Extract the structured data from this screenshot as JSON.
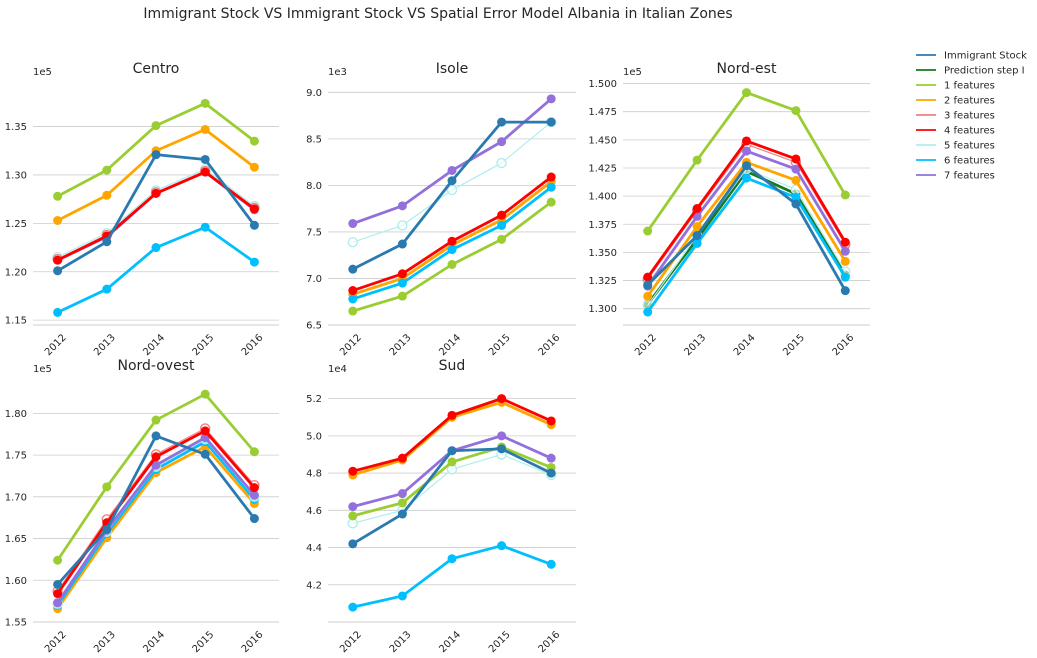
{
  "title": "Immigrant Stock VS Immigrant Stock VS Spatial Error Model Albania in Italian Zones",
  "legend": {
    "placement": "right",
    "entries": [
      {
        "label": "Immigrant Stock",
        "color": "#2a7ab0"
      },
      {
        "label": "Prediction step I",
        "color": "#1a7a1a"
      },
      {
        "label": "1 features",
        "color": "#9acd32"
      },
      {
        "label": "2 features",
        "color": "#ffa500"
      },
      {
        "label": "3 features",
        "color": "#f08080"
      },
      {
        "label": "4 features",
        "color": "#ff0000"
      },
      {
        "label": "5 features",
        "color": "#afeeee"
      },
      {
        "label": "6 features",
        "color": "#00bfff"
      },
      {
        "label": "7 features",
        "color": "#9370db"
      }
    ]
  },
  "chart_data": [
    {
      "type": "line",
      "title": "Centro",
      "offset_label": "1e5",
      "x": [
        "2012",
        "2013",
        "2014",
        "2015",
        "2016"
      ],
      "ylim": [
        1.145,
        1.395
      ],
      "yticks": [
        "1.15",
        "1.20",
        "1.25",
        "1.30",
        "1.35"
      ],
      "grid": "horizontal",
      "series": [
        {
          "name": "7 features",
          "values": [
            1.212,
            1.236,
            1.281,
            1.303,
            1.264
          ]
        },
        {
          "name": "5 features",
          "values": [
            1.215,
            1.24,
            1.284,
            1.306,
            1.268
          ]
        },
        {
          "name": "3 features",
          "values": [
            1.213,
            1.238,
            1.282,
            1.304,
            1.266
          ]
        },
        {
          "name": "4 features",
          "values": [
            1.212,
            1.237,
            1.281,
            1.303,
            1.265
          ]
        },
        {
          "name": "2 features",
          "values": [
            1.253,
            1.279,
            1.325,
            1.347,
            1.308
          ]
        },
        {
          "name": "1 features",
          "values": [
            1.278,
            1.305,
            1.351,
            1.374,
            1.335
          ]
        },
        {
          "name": "6 features",
          "values": [
            1.158,
            1.182,
            1.225,
            1.246,
            1.21
          ]
        },
        {
          "name": "Immigrant Stock",
          "values": [
            1.201,
            1.231,
            1.321,
            1.316,
            1.248
          ]
        }
      ]
    },
    {
      "type": "line",
      "title": "Isole",
      "offset_label": "1e3",
      "x": [
        "2012",
        "2013",
        "2014",
        "2015",
        "2016"
      ],
      "ylim": [
        6.5,
        9.1
      ],
      "yticks": [
        "6.5",
        "7.0",
        "7.5",
        "8.0",
        "8.5",
        "9.0"
      ],
      "grid": "horizontal",
      "series": [
        {
          "name": "5 features",
          "values": [
            7.39,
            7.57,
            7.95,
            8.24,
            8.68
          ]
        },
        {
          "name": "1 features",
          "values": [
            6.65,
            6.81,
            7.15,
            7.42,
            7.82
          ]
        },
        {
          "name": "2 features",
          "values": [
            6.83,
            7.0,
            7.36,
            7.63,
            8.04
          ]
        },
        {
          "name": "6 features",
          "values": [
            6.78,
            6.95,
            7.31,
            7.57,
            7.98
          ]
        },
        {
          "name": "4 features",
          "values": [
            6.87,
            7.05,
            7.4,
            7.68,
            8.09
          ]
        },
        {
          "name": "7 features",
          "values": [
            7.59,
            7.78,
            8.16,
            8.47,
            8.93
          ]
        },
        {
          "name": "Immigrant Stock",
          "values": [
            7.1,
            7.37,
            8.05,
            8.68,
            8.68
          ]
        }
      ]
    },
    {
      "type": "line",
      "title": "Nord-est",
      "offset_label": "1e5",
      "x": [
        "2012",
        "2013",
        "2014",
        "2015",
        "2016"
      ],
      "ylim": [
        1.2855,
        1.5005
      ],
      "yticks": [
        "1.300",
        "1.325",
        "1.350",
        "1.375",
        "1.400",
        "1.425",
        "1.450",
        "1.475",
        "1.500"
      ],
      "grid": "horizontal",
      "series": [
        {
          "name": "Prediction step I",
          "values": [
            1.304,
            1.362,
            1.422,
            1.402,
            1.33
          ]
        },
        {
          "name": "5 features",
          "values": [
            1.303,
            1.365,
            1.424,
            1.406,
            1.333
          ]
        },
        {
          "name": "6 features",
          "values": [
            1.297,
            1.358,
            1.416,
            1.399,
            1.328
          ]
        },
        {
          "name": "2 features",
          "values": [
            1.311,
            1.373,
            1.43,
            1.414,
            1.342
          ]
        },
        {
          "name": "1 features",
          "values": [
            1.369,
            1.432,
            1.492,
            1.476,
            1.401
          ]
        },
        {
          "name": "3 features",
          "values": [
            1.326,
            1.387,
            1.446,
            1.43,
            1.357
          ]
        },
        {
          "name": "7 features",
          "values": [
            1.32,
            1.382,
            1.44,
            1.424,
            1.351
          ]
        },
        {
          "name": "4 features",
          "values": [
            1.328,
            1.389,
            1.449,
            1.433,
            1.359
          ]
        },
        {
          "name": "Immigrant Stock",
          "values": [
            1.321,
            1.365,
            1.427,
            1.393,
            1.316
          ]
        }
      ]
    },
    {
      "type": "line",
      "title": "Nord-ovest",
      "offset_label": "1e5",
      "x": [
        "2012",
        "2013",
        "2014",
        "2015",
        "2016"
      ],
      "ylim": [
        1.55,
        1.84
      ],
      "yticks": [
        "1.55",
        "1.60",
        "1.65",
        "1.70",
        "1.75",
        "1.80"
      ],
      "grid": "horizontal",
      "series": [
        {
          "name": "2 features",
          "values": [
            1.566,
            1.651,
            1.729,
            1.76,
            1.692
          ]
        },
        {
          "name": "6 features",
          "values": [
            1.57,
            1.656,
            1.733,
            1.766,
            1.697
          ]
        },
        {
          "name": "5 features",
          "values": [
            1.572,
            1.658,
            1.736,
            1.769,
            1.7
          ]
        },
        {
          "name": "7 features",
          "values": [
            1.573,
            1.66,
            1.738,
            1.771,
            1.702
          ]
        },
        {
          "name": "1 features",
          "values": [
            1.624,
            1.712,
            1.792,
            1.823,
            1.754
          ]
        },
        {
          "name": "3 features",
          "values": [
            1.587,
            1.673,
            1.751,
            1.782,
            1.714
          ]
        },
        {
          "name": "4 features",
          "values": [
            1.584,
            1.669,
            1.748,
            1.779,
            1.711
          ]
        },
        {
          "name": "Immigrant Stock",
          "values": [
            1.595,
            1.661,
            1.773,
            1.751,
            1.674
          ]
        }
      ]
    },
    {
      "type": "line",
      "title": "Sud",
      "offset_label": "1e4",
      "x": [
        "2012",
        "2013",
        "2014",
        "2015",
        "2016"
      ],
      "ylim": [
        4.0,
        5.3
      ],
      "yticks": [
        "4.2",
        "4.4",
        "4.6",
        "4.8",
        "5.0",
        "5.2"
      ],
      "grid": "horizontal",
      "series": [
        {
          "name": "5 features",
          "values": [
            4.53,
            4.6,
            4.82,
            4.9,
            4.79
          ]
        },
        {
          "name": "1 features",
          "values": [
            4.57,
            4.64,
            4.86,
            4.94,
            4.83
          ]
        },
        {
          "name": "7 features",
          "values": [
            4.62,
            4.69,
            4.92,
            5.0,
            4.88
          ]
        },
        {
          "name": "2 features",
          "values": [
            4.79,
            4.87,
            5.1,
            5.18,
            5.06
          ]
        },
        {
          "name": "4 features",
          "values": [
            4.81,
            4.88,
            5.11,
            5.2,
            5.08
          ]
        },
        {
          "name": "6 features",
          "values": [
            4.08,
            4.14,
            4.34,
            4.41,
            4.31
          ]
        },
        {
          "name": "Immigrant Stock",
          "values": [
            4.42,
            4.58,
            4.92,
            4.93,
            4.8
          ]
        }
      ]
    }
  ]
}
